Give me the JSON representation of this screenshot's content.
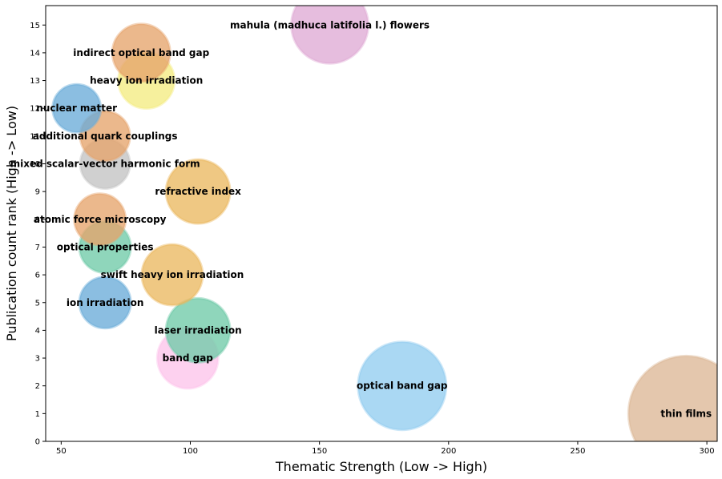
{
  "chart_data": {
    "type": "scatter",
    "title": "",
    "xlabel": "Thematic Strength (Low -> High)",
    "ylabel": "Publication count rank (High -> Low)",
    "xlim": [
      44,
      304
    ],
    "ylim": [
      0,
      15.7
    ],
    "xticks": [
      50,
      100,
      150,
      200,
      250,
      300
    ],
    "yticks": [
      0,
      1,
      2,
      3,
      4,
      5,
      6,
      7,
      8,
      9,
      10,
      11,
      12,
      13,
      14,
      15
    ],
    "grid": false,
    "legend": "none",
    "points": [
      {
        "label": "thin films",
        "x": 292,
        "y": 1,
        "size": 72,
        "color": "#dcb796"
      },
      {
        "label": "optical band gap",
        "x": 182,
        "y": 2,
        "size": 55,
        "color": "#92cdf0"
      },
      {
        "label": "band gap",
        "x": 99,
        "y": 3,
        "size": 38,
        "color": "#fcc4ea"
      },
      {
        "label": "laser irradiation",
        "x": 103,
        "y": 4,
        "size": 40,
        "color": "#6fcaa8"
      },
      {
        "label": "ion irradiation",
        "x": 67,
        "y": 5,
        "size": 32,
        "color": "#6aacd9"
      },
      {
        "label": "swift heavy ion irradiation",
        "x": 93,
        "y": 6,
        "size": 38,
        "color": "#ebb860"
      },
      {
        "label": "optical properties",
        "x": 67,
        "y": 7,
        "size": 32,
        "color": "#6fcaa8"
      },
      {
        "label": "atomic force microscopy",
        "x": 65,
        "y": 8,
        "size": 32,
        "color": "#e6a46c"
      },
      {
        "label": "refractive index",
        "x": 103,
        "y": 9,
        "size": 40,
        "color": "#ebb860"
      },
      {
        "label": "mixed scalar-vector harmonic form",
        "x": 67,
        "y": 10,
        "size": 31,
        "color": "#c3c3c3"
      },
      {
        "label": "additional quark couplings",
        "x": 67,
        "y": 11,
        "size": 31,
        "color": "#e6a46c"
      },
      {
        "label": "nuclear matter",
        "x": 56,
        "y": 12,
        "size": 30,
        "color": "#6aacd9"
      },
      {
        "label": "heavy ion irradiation",
        "x": 83,
        "y": 13,
        "size": 35,
        "color": "#f3ec82"
      },
      {
        "label": "indirect optical band gap",
        "x": 81,
        "y": 14,
        "size": 36,
        "color": "#e6a46c"
      },
      {
        "label": "mahula (madhuca latifolia l.) flowers",
        "x": 154,
        "y": 15,
        "size": 48,
        "color": "#dfaad5"
      }
    ]
  }
}
